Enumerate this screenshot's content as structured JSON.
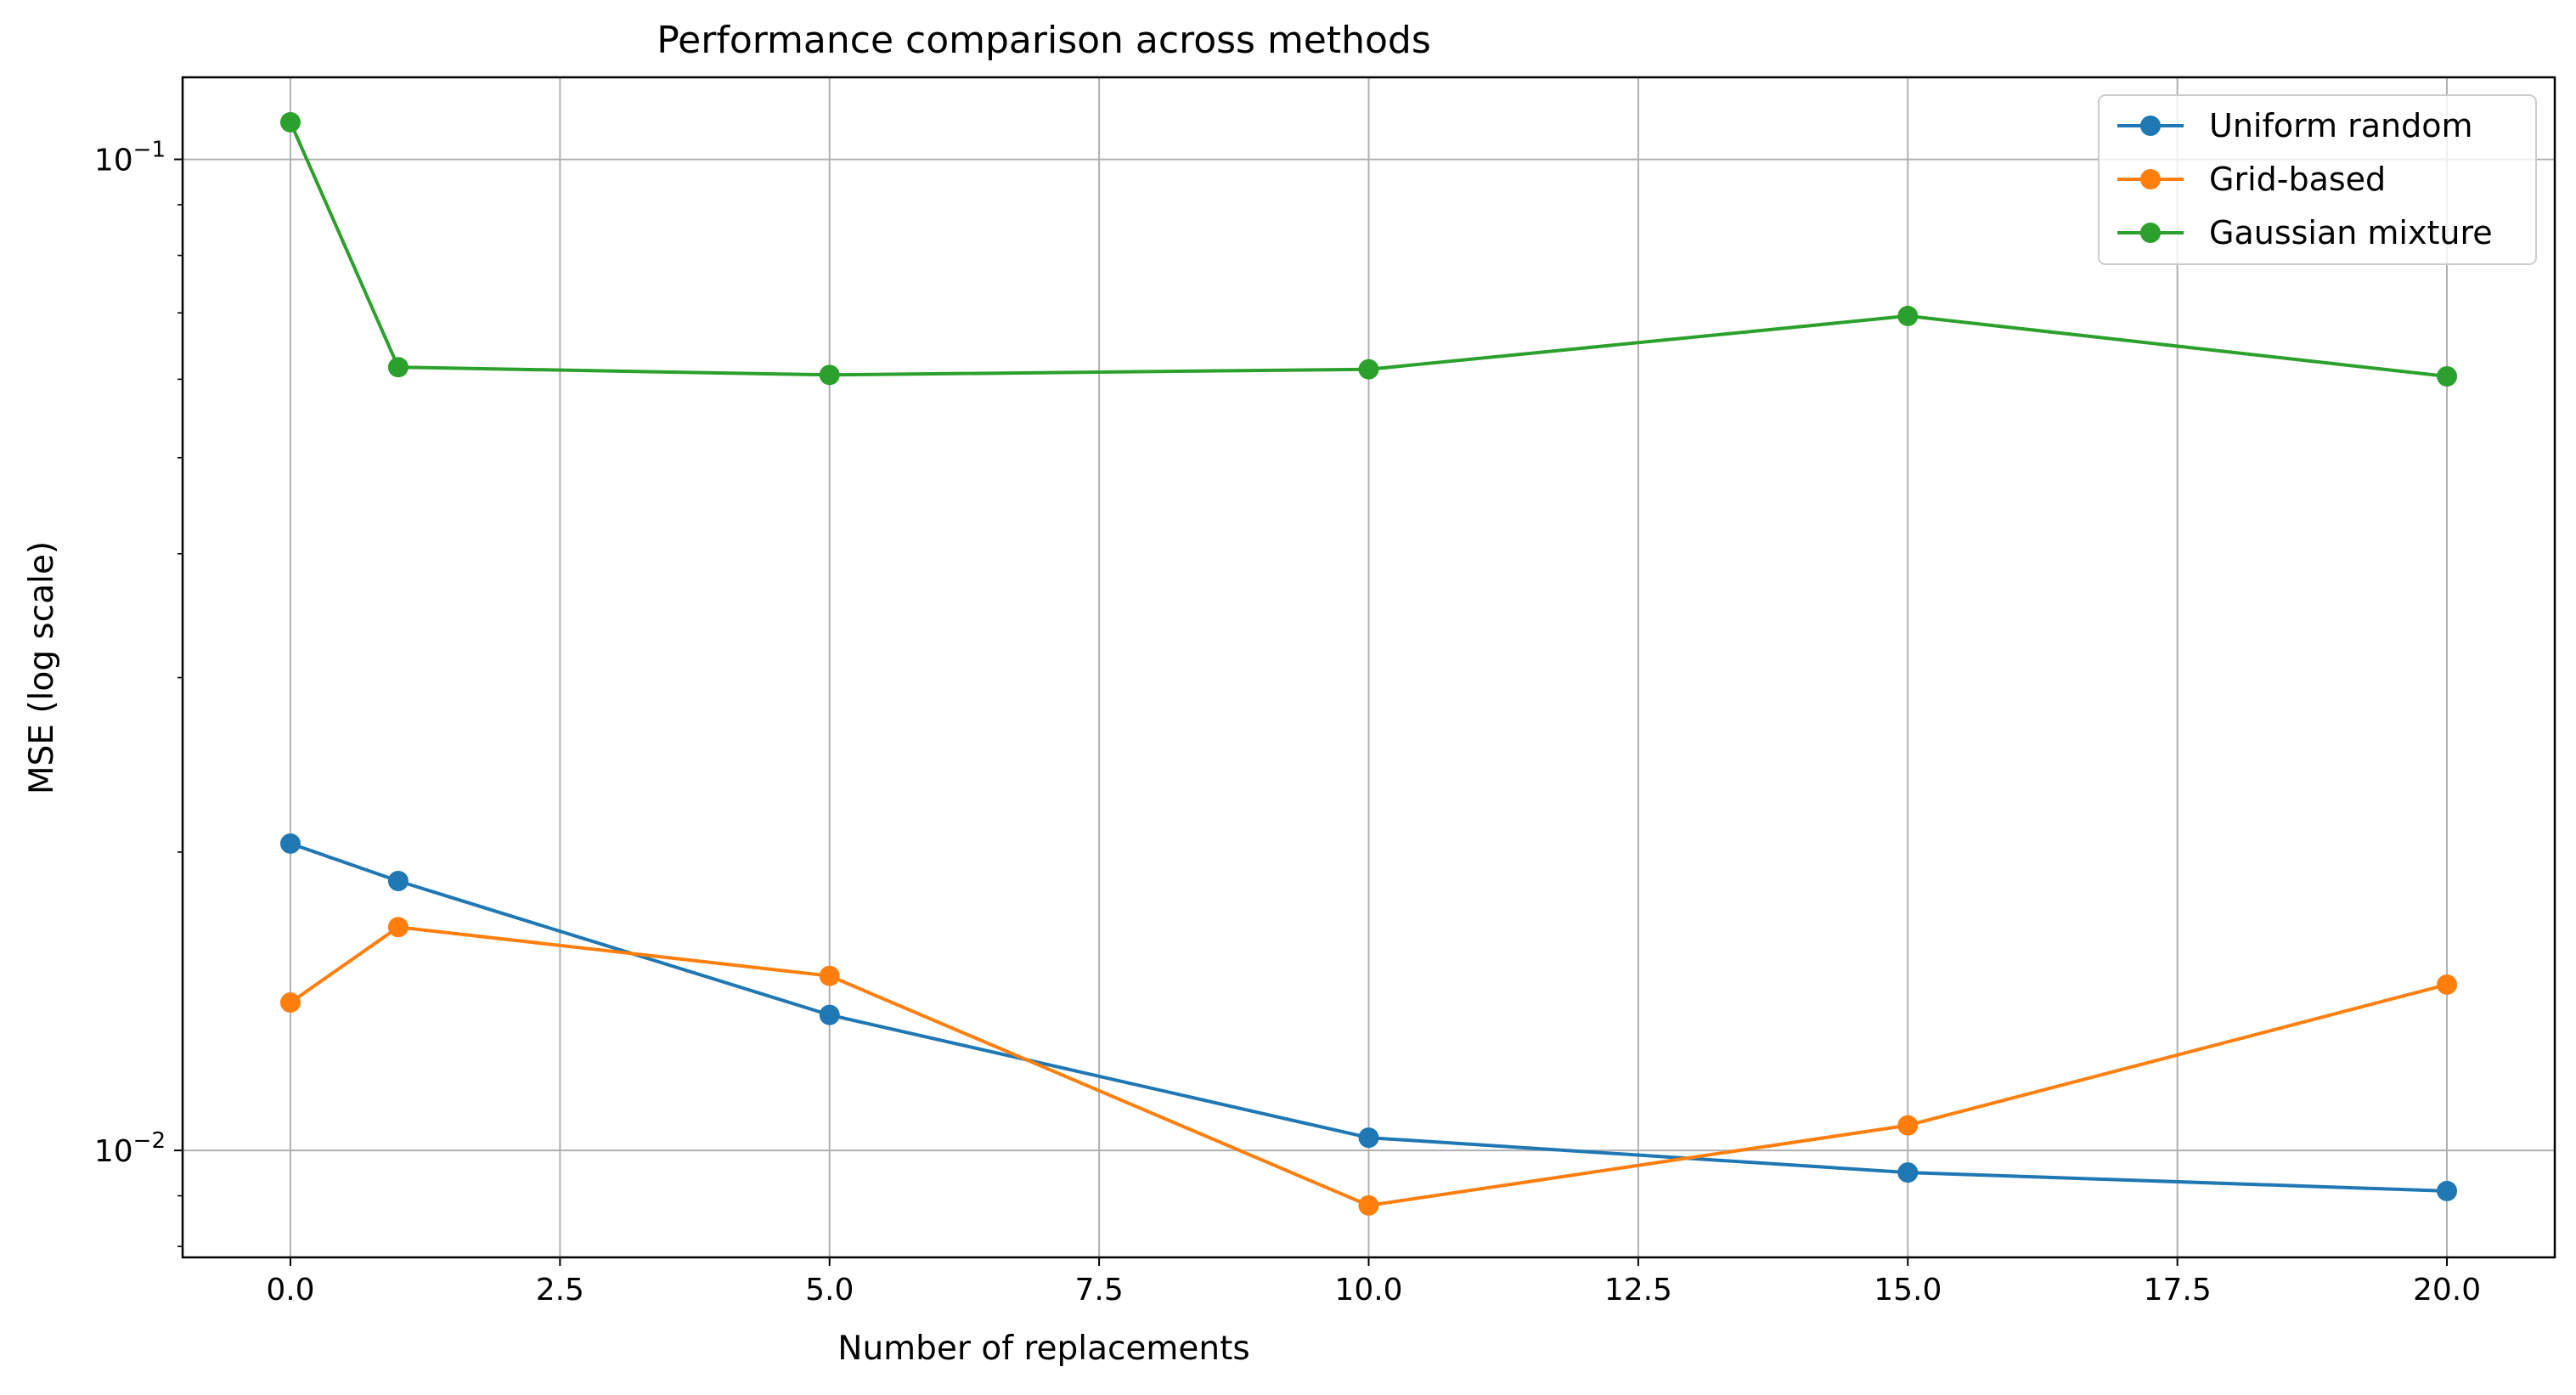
{
  "chart_data": {
    "type": "line",
    "title": "Performance comparison across methods",
    "xlabel": "Number of replacements",
    "ylabel": "MSE (log scale)",
    "xlim": [
      -1.0,
      21.0
    ],
    "ylim": [
      0.0078,
      0.121
    ],
    "yscale": "log",
    "grid": true,
    "legend_position": "top-right",
    "x": [
      0,
      1,
      5,
      10,
      15,
      20
    ],
    "x_ticks": [
      {
        "value": 0.0,
        "label": "0.0"
      },
      {
        "value": 2.5,
        "label": "2.5"
      },
      {
        "value": 5.0,
        "label": "5.0"
      },
      {
        "value": 7.5,
        "label": "7.5"
      },
      {
        "value": 10.0,
        "label": "10.0"
      },
      {
        "value": 12.5,
        "label": "12.5"
      },
      {
        "value": 15.0,
        "label": "15.0"
      },
      {
        "value": 17.5,
        "label": "17.5"
      },
      {
        "value": 20.0,
        "label": "20.0"
      }
    ],
    "y_ticks": [
      {
        "value": 0.01,
        "base": "10",
        "exp": "−2"
      },
      {
        "value": 0.1,
        "base": "10",
        "exp": "−1"
      }
    ],
    "series": [
      {
        "name": "Uniform random",
        "color": "#1f77b4",
        "values": [
          0.0204,
          0.0187,
          0.0137,
          0.0103,
          0.0095,
          0.0091
        ]
      },
      {
        "name": "Grid-based",
        "color": "#ff7f0e",
        "values": [
          0.0141,
          0.0168,
          0.015,
          0.0088,
          0.0106,
          0.0147
        ]
      },
      {
        "name": "Gaussian mixture",
        "color": "#2ca02c",
        "values": [
          0.109,
          0.0617,
          0.0606,
          0.0614,
          0.0695,
          0.0604
        ]
      }
    ]
  }
}
